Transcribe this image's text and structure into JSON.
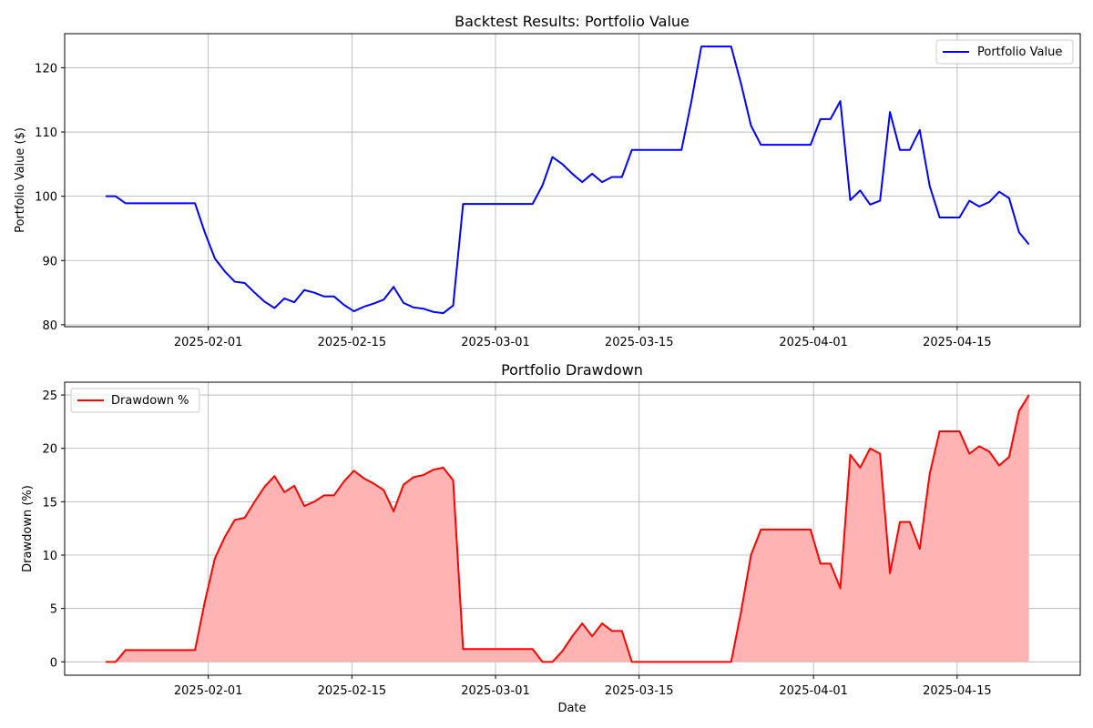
{
  "chart_data": [
    {
      "type": "line",
      "title": "Backtest Results: Portfolio Value",
      "xlabel": "",
      "ylabel": "Portfolio Value ($)",
      "x_start": "2025-01-22",
      "x_end": "2025-04-22",
      "xlim": [
        "2025-01-18",
        "2025-04-27"
      ],
      "ylim": [
        79.7,
        125.3
      ],
      "xticks": [
        "2025-02-01",
        "2025-02-15",
        "2025-03-01",
        "2025-03-15",
        "2025-04-01",
        "2025-04-15"
      ],
      "yticks": [
        80,
        90,
        100,
        110,
        120
      ],
      "grid": true,
      "legend": "top-right",
      "series": [
        {
          "name": "Portfolio Value",
          "color": "#0000ff",
          "values": [
            100,
            100,
            98.9,
            98.9,
            98.9,
            98.9,
            98.9,
            98.9,
            98.9,
            98.9,
            94.3,
            90.3,
            88.3,
            86.7,
            86.5,
            85.0,
            83.6,
            82.6,
            84.1,
            83.5,
            85.4,
            85.0,
            84.4,
            84.4,
            83.1,
            82.1,
            82.8,
            83.3,
            83.9,
            85.9,
            83.4,
            82.7,
            82.5,
            82.0,
            81.8,
            83.0,
            98.8,
            98.8,
            98.8,
            98.8,
            98.8,
            98.8,
            98.8,
            98.8,
            101.7,
            106.1,
            105.0,
            103.5,
            102.2,
            103.5,
            102.2,
            103.0,
            103.0,
            107.2,
            107.2,
            107.2,
            107.2,
            107.2,
            107.2,
            114.8,
            123.3,
            123.3,
            123.3,
            123.3,
            117.5,
            111.0,
            108.0,
            108.0,
            108.0,
            108.0,
            108.0,
            108.0,
            112.0,
            112.0,
            114.8,
            99.4,
            100.9,
            98.7,
            99.3,
            113.1,
            107.2,
            107.2,
            110.3,
            101.6,
            96.7,
            96.7,
            96.7,
            99.3,
            98.4,
            99.1,
            100.7,
            99.7,
            94.4,
            92.5
          ]
        }
      ]
    },
    {
      "type": "area",
      "title": "Portfolio Drawdown",
      "xlabel": "Date",
      "ylabel": "Drawdown (%)",
      "x_start": "2025-01-22",
      "x_end": "2025-04-22",
      "xlim": [
        "2025-01-18",
        "2025-04-27"
      ],
      "ylim": [
        -1.25,
        26.2
      ],
      "xticks": [
        "2025-02-01",
        "2025-02-15",
        "2025-03-01",
        "2025-03-15",
        "2025-04-01",
        "2025-04-15"
      ],
      "yticks": [
        0,
        5,
        10,
        15,
        20,
        25
      ],
      "grid": true,
      "legend": "top-left",
      "series": [
        {
          "name": "Drawdown %",
          "color": "#ff0000",
          "fill": "#ffb3b3",
          "values": [
            0,
            0,
            1.1,
            1.1,
            1.1,
            1.1,
            1.1,
            1.1,
            1.1,
            1.1,
            5.7,
            9.7,
            11.7,
            13.3,
            13.5,
            15.0,
            16.4,
            17.4,
            15.9,
            16.5,
            14.6,
            15.0,
            15.6,
            15.6,
            16.9,
            17.9,
            17.2,
            16.7,
            16.1,
            14.1,
            16.6,
            17.3,
            17.5,
            18.0,
            18.2,
            17.0,
            1.2,
            1.2,
            1.2,
            1.2,
            1.2,
            1.2,
            1.2,
            1.2,
            0,
            0,
            1.0,
            2.4,
            3.6,
            2.4,
            3.6,
            2.9,
            2.9,
            0,
            0,
            0,
            0,
            0,
            0,
            0,
            0,
            0,
            0,
            0,
            4.7,
            10.0,
            12.4,
            12.4,
            12.4,
            12.4,
            12.4,
            12.4,
            9.2,
            9.2,
            6.9,
            19.4,
            18.2,
            20.0,
            19.5,
            8.3,
            13.1,
            13.1,
            10.6,
            17.6,
            21.6,
            21.6,
            21.6,
            19.5,
            20.2,
            19.7,
            18.4,
            19.2,
            23.5,
            25.0
          ]
        }
      ]
    }
  ]
}
